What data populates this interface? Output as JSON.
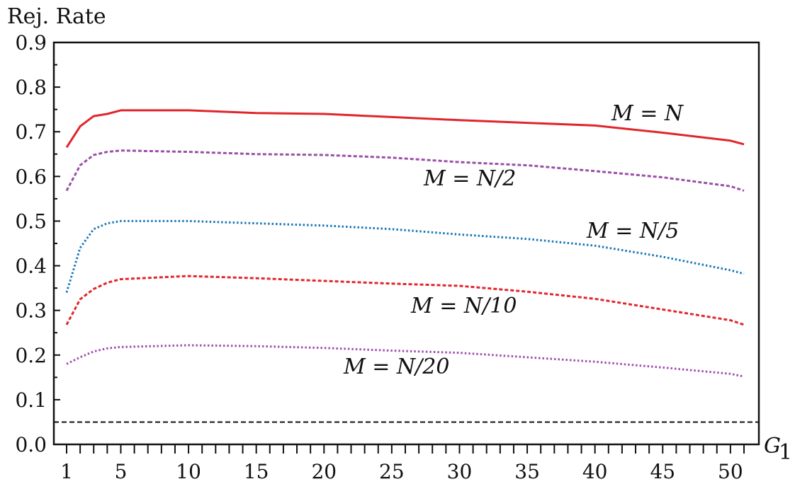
{
  "chart_data": {
    "type": "line",
    "ylabel": "Rej. Rate",
    "xlabel": "G",
    "xlabel_sub": "1",
    "xlim": [
      1,
      51
    ],
    "ylim": [
      0,
      0.9
    ],
    "y_ticks": [
      0.0,
      0.1,
      0.2,
      0.3,
      0.4,
      0.5,
      0.6,
      0.7,
      0.8,
      0.9
    ],
    "y_tick_labels": [
      "0.0",
      "0.1",
      "0.2",
      "0.3",
      "0.4",
      "0.5",
      "0.6",
      "0.7",
      "0.8",
      "0.9"
    ],
    "x_tick_labels": [
      "1",
      "5",
      "10",
      "15",
      "20",
      "25",
      "30",
      "35",
      "40",
      "45",
      "50"
    ],
    "x_tick_label_values": [
      1,
      5,
      10,
      15,
      20,
      25,
      30,
      35,
      40,
      45,
      50
    ],
    "grid": false,
    "reference_line": {
      "y": 0.05,
      "style": "dashed",
      "color": "#111111"
    },
    "x": [
      1,
      2,
      3,
      4,
      5,
      10,
      15,
      20,
      25,
      30,
      35,
      40,
      45,
      50,
      51
    ],
    "series": [
      {
        "label": "M = N",
        "color": "#e0262b",
        "dash": "solid",
        "values": [
          0.665,
          0.712,
          0.735,
          0.74,
          0.748,
          0.748,
          0.742,
          0.74,
          0.733,
          0.726,
          0.72,
          0.714,
          0.698,
          0.68,
          0.672
        ]
      },
      {
        "label": "M = N/2",
        "color": "#9b4fa8",
        "dash": "dashed",
        "values": [
          0.568,
          0.625,
          0.648,
          0.655,
          0.658,
          0.655,
          0.65,
          0.648,
          0.642,
          0.632,
          0.625,
          0.612,
          0.598,
          0.578,
          0.568
        ]
      },
      {
        "label": "M = N/5",
        "color": "#1a78b8",
        "dash": "dotted",
        "values": [
          0.34,
          0.44,
          0.482,
          0.495,
          0.5,
          0.5,
          0.495,
          0.49,
          0.482,
          0.47,
          0.46,
          0.445,
          0.42,
          0.39,
          0.382
        ]
      },
      {
        "label": "M = N/10",
        "color": "#e0262b",
        "dash": "dashed",
        "values": [
          0.268,
          0.325,
          0.348,
          0.362,
          0.37,
          0.377,
          0.372,
          0.366,
          0.36,
          0.355,
          0.342,
          0.326,
          0.302,
          0.278,
          0.268
        ]
      },
      {
        "label": "M = N/20",
        "color": "#a04fb0",
        "dash": "dotted",
        "values": [
          0.18,
          0.195,
          0.208,
          0.215,
          0.218,
          0.222,
          0.22,
          0.216,
          0.21,
          0.205,
          0.195,
          0.185,
          0.172,
          0.158,
          0.152
        ]
      }
    ]
  }
}
